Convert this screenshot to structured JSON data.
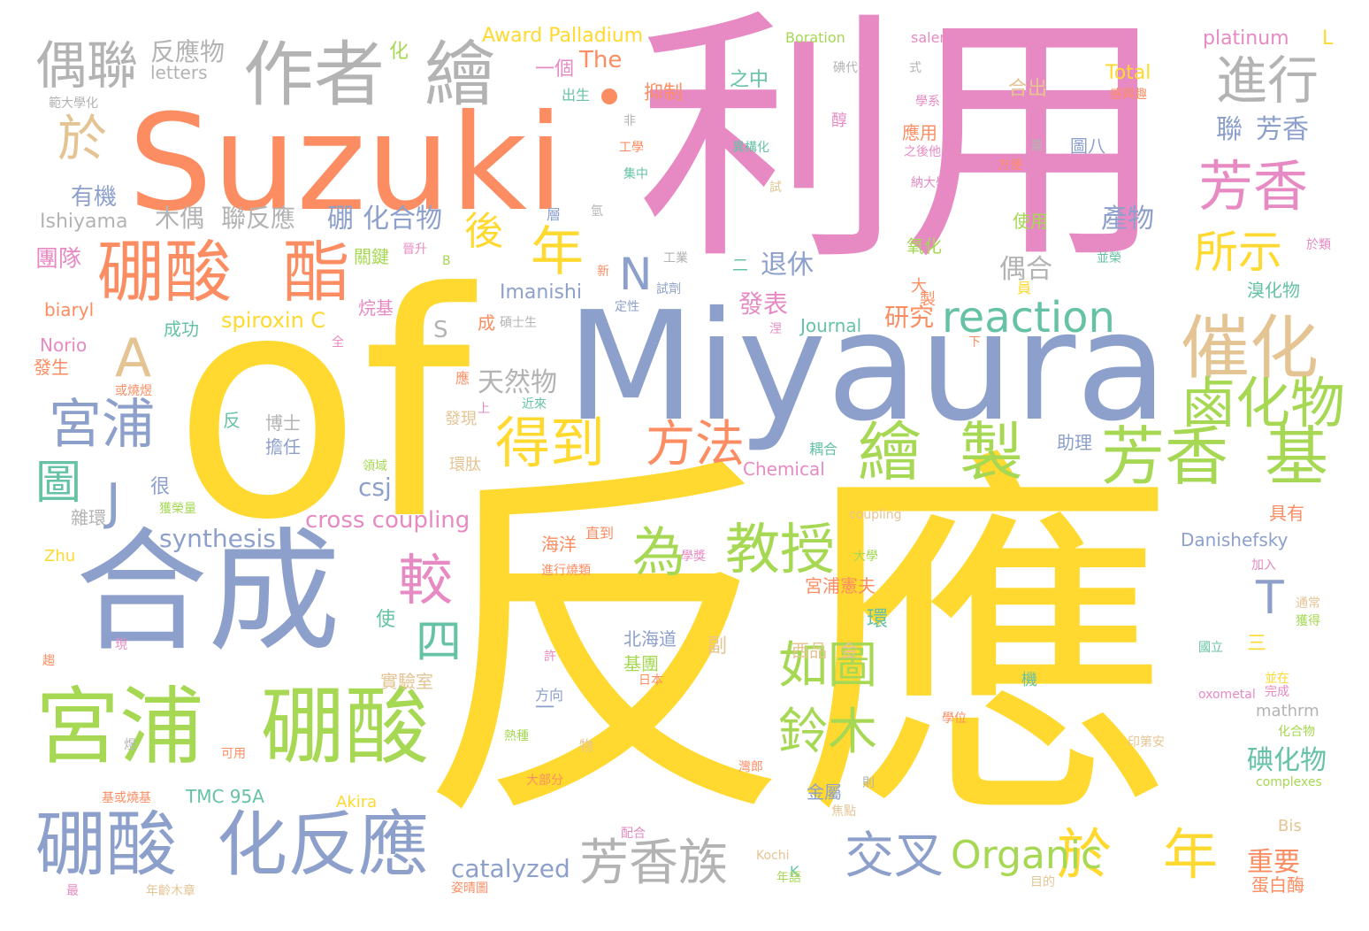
{
  "palette": {
    "yellow": "#ffd92f",
    "orange": "#fc8d62",
    "pink": "#e78ac3",
    "blue": "#8da0cb",
    "green": "#a6d854",
    "teal": "#66c2a5",
    "tan": "#e5c494",
    "gray": "#b3b3b3"
  },
  "words": [
    {
      "text": "反應",
      "color": "yellow"
    },
    {
      "text": "of",
      "color": "yellow"
    },
    {
      "text": "利用",
      "color": "pink"
    },
    {
      "text": "Miyaura",
      "color": "blue"
    },
    {
      "text": "Suzuki",
      "color": "orange"
    },
    {
      "text": "合成",
      "color": "blue"
    },
    {
      "text": "宮浦",
      "color": "green"
    },
    {
      "text": "硼酸",
      "color": "green"
    },
    {
      "text": "硼酸",
      "color": "blue"
    },
    {
      "text": "化反應",
      "color": "blue"
    },
    {
      "text": "作者",
      "color": "gray"
    },
    {
      "text": "繪",
      "color": "gray"
    },
    {
      "text": "硼酸",
      "color": "orange"
    },
    {
      "text": "酯",
      "color": "orange"
    },
    {
      "text": "偶聯",
      "color": "gray"
    },
    {
      "text": "進行",
      "color": "gray"
    },
    {
      "text": "芳香",
      "color": "pink"
    },
    {
      "text": "催化",
      "color": "tan"
    },
    {
      "text": "芳香",
      "color": "green"
    },
    {
      "text": "基",
      "color": "green"
    },
    {
      "text": "繪",
      "color": "green"
    },
    {
      "text": "製",
      "color": "green"
    },
    {
      "text": "鹵化物",
      "color": "green"
    },
    {
      "text": "宮浦",
      "color": "blue"
    },
    {
      "text": "教授",
      "color": "green"
    },
    {
      "text": "得到",
      "color": "yellow"
    },
    {
      "text": "方法",
      "color": "orange"
    },
    {
      "text": "芳香族",
      "color": "gray"
    },
    {
      "text": "交叉",
      "color": "blue"
    },
    {
      "text": "於",
      "color": "yellow"
    },
    {
      "text": "年",
      "color": "yellow"
    },
    {
      "text": "reaction",
      "color": "teal"
    },
    {
      "text": "Organic",
      "color": "green"
    },
    {
      "text": "如圖",
      "color": "green"
    },
    {
      "text": "鈴木",
      "color": "green"
    },
    {
      "text": "為",
      "color": "green"
    },
    {
      "text": "較",
      "color": "pink"
    },
    {
      "text": "A",
      "color": "tan"
    },
    {
      "text": "N",
      "color": "blue"
    },
    {
      "text": "年",
      "color": "yellow"
    },
    {
      "text": "後",
      "color": "yellow"
    },
    {
      "text": "於",
      "color": "tan"
    },
    {
      "text": "所示",
      "color": "yellow"
    },
    {
      "text": "圖",
      "color": "teal"
    },
    {
      "text": "J",
      "color": "blue"
    },
    {
      "text": "四",
      "color": "teal"
    },
    {
      "text": "T",
      "color": "blue"
    },
    {
      "text": "synthesis",
      "color": "blue"
    },
    {
      "text": "cross coupling",
      "color": "pink"
    },
    {
      "text": "catalyzed",
      "color": "blue"
    },
    {
      "text": "反應物",
      "color": "gray"
    },
    {
      "text": "聯",
      "color": "blue"
    },
    {
      "text": "芳香",
      "color": "blue"
    },
    {
      "text": "天然物",
      "color": "gray"
    },
    {
      "text": "化合物",
      "color": "blue"
    },
    {
      "text": "硼",
      "color": "blue"
    },
    {
      "text": "木偶",
      "color": "gray"
    },
    {
      "text": "聯反應",
      "color": "gray"
    },
    {
      "text": "有機",
      "color": "blue"
    },
    {
      "text": "團隊",
      "color": "pink"
    },
    {
      "text": "退休",
      "color": "blue"
    },
    {
      "text": "發表",
      "color": "pink"
    },
    {
      "text": "研究",
      "color": "orange"
    },
    {
      "text": "偶合",
      "color": "gray"
    },
    {
      "text": "產物",
      "color": "blue"
    },
    {
      "text": "csj",
      "color": "blue"
    },
    {
      "text": "重要",
      "color": "orange"
    },
    {
      "text": "碘化物",
      "color": "teal"
    },
    {
      "text": "spiroxin C",
      "color": "yellow"
    },
    {
      "text": "Imanishi",
      "color": "blue"
    },
    {
      "text": "Ishiyama",
      "color": "gray"
    },
    {
      "text": "Award Palladium",
      "color": "yellow"
    },
    {
      "text": "platinum",
      "color": "pink"
    },
    {
      "text": "L",
      "color": "yellow"
    },
    {
      "text": "Boration",
      "color": "green"
    },
    {
      "text": "salen",
      "color": "pink"
    },
    {
      "text": "Total",
      "color": "yellow"
    },
    {
      "text": "The",
      "color": "orange"
    },
    {
      "text": "一個",
      "color": "pink"
    },
    {
      "text": "letters",
      "color": "gray"
    },
    {
      "text": "化",
      "color": "green"
    },
    {
      "text": "抑制",
      "color": "orange"
    },
    {
      "text": "之中",
      "color": "teal"
    },
    {
      "text": "合出",
      "color": "tan"
    },
    {
      "text": "應用",
      "color": "orange"
    },
    {
      "text": "圖八",
      "color": "blue"
    },
    {
      "text": "使用",
      "color": "green"
    },
    {
      "text": "氧化",
      "color": "green"
    },
    {
      "text": "溴化物",
      "color": "teal"
    },
    {
      "text": "Journal",
      "color": "teal"
    },
    {
      "text": "biaryl",
      "color": "orange"
    },
    {
      "text": "Norio",
      "color": "pink"
    },
    {
      "text": "發生",
      "color": "orange"
    },
    {
      "text": "成功",
      "color": "teal"
    },
    {
      "text": "烷基",
      "color": "pink"
    },
    {
      "text": "關鍵",
      "color": "green"
    },
    {
      "text": "Chemical",
      "color": "pink"
    },
    {
      "text": "Danishefsky",
      "color": "blue"
    },
    {
      "text": "具有",
      "color": "orange"
    },
    {
      "text": "蛋白酶",
      "color": "orange"
    },
    {
      "text": "助理",
      "color": "blue"
    },
    {
      "text": "宮浦憲夫",
      "color": "orange"
    },
    {
      "text": "北海道",
      "color": "blue"
    },
    {
      "text": "基團",
      "color": "green"
    },
    {
      "text": "實驗室",
      "color": "tan"
    },
    {
      "text": "使",
      "color": "teal"
    },
    {
      "text": "環",
      "color": "teal"
    },
    {
      "text": "三",
      "color": "yellow"
    },
    {
      "text": "副",
      "color": "tan"
    },
    {
      "text": "金屬",
      "color": "blue"
    },
    {
      "text": "TMC 95A",
      "color": "teal"
    },
    {
      "text": "Akira",
      "color": "yellow"
    },
    {
      "text": "Zhu",
      "color": "yellow"
    },
    {
      "text": "mathrm",
      "color": "gray"
    },
    {
      "text": "Bis",
      "color": "tan"
    },
    {
      "text": "K",
      "color": "teal"
    },
    {
      "text": "Kochi",
      "color": "tan"
    },
    {
      "text": "很",
      "color": "blue"
    },
    {
      "text": "雜環",
      "color": "gray"
    },
    {
      "text": "博士",
      "color": "gray"
    },
    {
      "text": "擔任",
      "color": "blue"
    },
    {
      "text": "反",
      "color": "teal"
    },
    {
      "text": "發現",
      "color": "tan"
    },
    {
      "text": "環肽",
      "color": "tan"
    },
    {
      "text": "海洋",
      "color": "orange"
    },
    {
      "text": "直到",
      "color": "orange"
    },
    {
      "text": "進行燒類",
      "color": "orange"
    },
    {
      "text": "方向",
      "color": "blue"
    },
    {
      "text": "日本",
      "color": "orange"
    },
    {
      "text": "熱種",
      "color": "green"
    },
    {
      "text": "物",
      "color": "tan"
    },
    {
      "text": "大部分",
      "color": "orange"
    },
    {
      "text": "配合",
      "color": "pink"
    },
    {
      "text": "年齡木章",
      "color": "tan"
    },
    {
      "text": "姿晴圖",
      "color": "orange"
    },
    {
      "text": "目的",
      "color": "tan"
    },
    {
      "text": "年語",
      "color": "green"
    },
    {
      "text": "最",
      "color": "pink"
    },
    {
      "text": "基或燒基",
      "color": "orange"
    },
    {
      "text": "可用",
      "color": "orange"
    },
    {
      "text": "煜",
      "color": "gray"
    },
    {
      "text": "現",
      "color": "pink"
    },
    {
      "text": "趨",
      "color": "orange"
    },
    {
      "text": "獲榮量",
      "color": "green"
    },
    {
      "text": "或燒煜",
      "color": "orange"
    },
    {
      "text": "上",
      "color": "pink"
    },
    {
      "text": "應",
      "color": "orange"
    },
    {
      "text": "近來",
      "color": "teal"
    },
    {
      "text": "領域",
      "color": "green"
    },
    {
      "text": "耦合",
      "color": "teal"
    },
    {
      "text": "西品",
      "color": "tan"
    },
    {
      "text": "金",
      "color": "tan"
    },
    {
      "text": "機",
      "color": "teal"
    },
    {
      "text": "coupling",
      "color": "tan"
    },
    {
      "text": "大學",
      "color": "green"
    },
    {
      "text": "灣郎",
      "color": "orange"
    },
    {
      "text": "焦點",
      "color": "tan"
    },
    {
      "text": "則",
      "color": "gray"
    },
    {
      "text": "學位",
      "color": "orange"
    },
    {
      "text": "印第安",
      "color": "tan"
    },
    {
      "text": "化合物",
      "color": "green"
    },
    {
      "text": "complexes",
      "color": "green"
    },
    {
      "text": "oxometal",
      "color": "pink"
    },
    {
      "text": "並在",
      "color": "yellow"
    },
    {
      "text": "完成",
      "color": "pink"
    },
    {
      "text": "獲得",
      "color": "green"
    },
    {
      "text": "通常",
      "color": "tan"
    },
    {
      "text": "國立",
      "color": "teal"
    },
    {
      "text": "加入",
      "color": "pink"
    },
    {
      "text": "學獎",
      "color": "pink"
    },
    {
      "text": "許",
      "color": "pink"
    },
    {
      "text": "S",
      "color": "gray"
    },
    {
      "text": "成",
      "color": "orange"
    },
    {
      "text": "碩士生",
      "color": "gray"
    },
    {
      "text": "全",
      "color": "pink"
    },
    {
      "text": "涅",
      "color": "pink"
    },
    {
      "text": "下",
      "color": "orange"
    },
    {
      "text": "B",
      "color": "green"
    },
    {
      "text": "晉升",
      "color": "pink"
    },
    {
      "text": "新",
      "color": "orange"
    },
    {
      "text": "試劑",
      "color": "blue"
    },
    {
      "text": "定性",
      "color": "blue"
    },
    {
      "text": "工業",
      "color": "gray"
    },
    {
      "text": "二",
      "color": "teal"
    },
    {
      "text": "大",
      "color": "orange"
    },
    {
      "text": "層",
      "color": "blue"
    },
    {
      "text": "製",
      "color": "orange"
    },
    {
      "text": "員",
      "color": "yellow"
    },
    {
      "text": "氫",
      "color": "gray"
    },
    {
      "text": "集中",
      "color": "teal"
    },
    {
      "text": "工學",
      "color": "orange"
    },
    {
      "text": "試",
      "color": "tan"
    },
    {
      "text": "異構化",
      "color": "teal"
    },
    {
      "text": "非",
      "color": "gray"
    },
    {
      "text": "醇",
      "color": "pink"
    },
    {
      "text": "碘代",
      "color": "gray"
    },
    {
      "text": "式",
      "color": "gray"
    },
    {
      "text": "學系",
      "color": "pink"
    },
    {
      "text": "感興趣",
      "color": "orange"
    },
    {
      "text": "於類",
      "color": "pink"
    },
    {
      "text": "並榮",
      "color": "teal"
    },
    {
      "text": "方便",
      "color": "orange"
    },
    {
      "text": "納大學",
      "color": "pink"
    },
    {
      "text": "之後他",
      "color": "pink"
    },
    {
      "text": "臺",
      "color": "gray"
    },
    {
      "text": "出生",
      "color": "teal"
    },
    {
      "text": "範大學化",
      "color": "gray"
    },
    {
      "text": "一",
      "color": "blue"
    }
  ]
}
